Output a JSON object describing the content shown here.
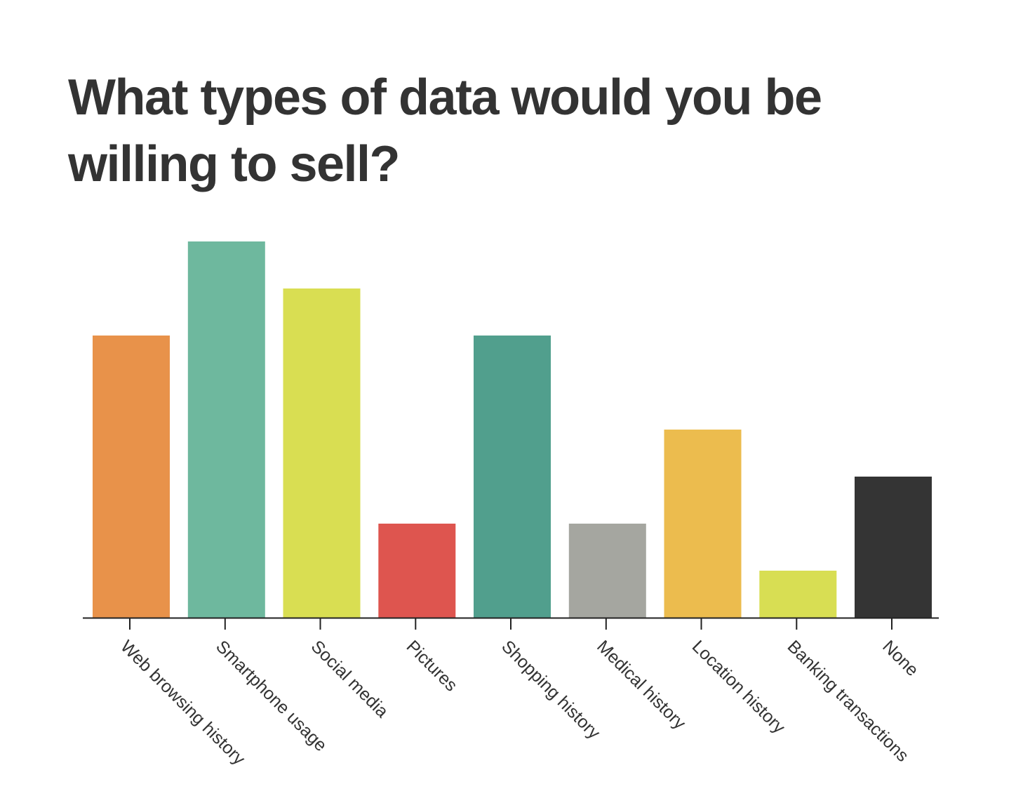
{
  "chart_data": {
    "type": "bar",
    "title": "What types of data would you be willing to sell?",
    "categories": [
      "Web browsing history",
      "Smartphone usage",
      "Social media",
      "Pictures",
      "Shopping history",
      "Medical history",
      "Location history",
      "Banking transactions",
      "None"
    ],
    "values": [
      30,
      40,
      35,
      10,
      30,
      10,
      20,
      5,
      15
    ],
    "colors": [
      "#e8924a",
      "#6eb89e",
      "#d9de52",
      "#de554f",
      "#519f8d",
      "#a5a6a0",
      "#ecbc4e",
      "#d8de53",
      "#343434"
    ],
    "ylim": [
      0,
      40
    ],
    "grid": false,
    "legend": "none",
    "ylabel": "",
    "xlabel": ""
  }
}
